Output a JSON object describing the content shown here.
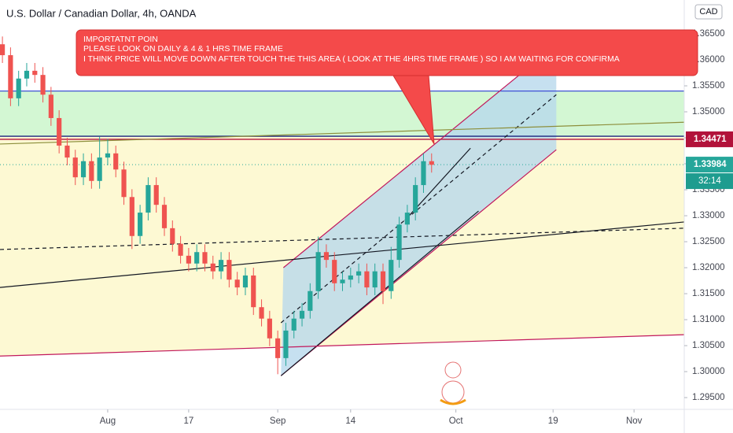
{
  "chart_data": {
    "type": "candlestick",
    "title": "U.S. Dollar / Canadian Dollar, 4h, OANDA",
    "currency": "CAD",
    "countdown": "32:14",
    "annotation": [
      "IMPORTATNT POIN",
      "PLEASE LOOK ON DAILY & 4 & 1 HRS TIME FRAME",
      "I THINK PRICE WILL MOVE DOWN AFTER TOUCH THE THIS AREA ( LOOK AT THE 4HRS TIME FRAME ) SO I AM WAITING FOR CONFIRMA"
    ],
    "x": [
      -13,
      -12,
      -11,
      -10,
      -9,
      -8,
      -7,
      -6,
      -5,
      -4,
      -3,
      -2,
      -1,
      0,
      1,
      2,
      3,
      4,
      5,
      6,
      7,
      8,
      9,
      10,
      11,
      12,
      13,
      14,
      15,
      16,
      17,
      18,
      19,
      20,
      21,
      22,
      23,
      24,
      25,
      26,
      27,
      28,
      29,
      30,
      31,
      32,
      33,
      34,
      35,
      36,
      37,
      38,
      39,
      40
    ],
    "open": [
      1.363,
      1.3609,
      1.3526,
      1.3564,
      1.3579,
      1.3571,
      1.3533,
      1.3488,
      1.3435,
      1.3412,
      1.3374,
      1.3405,
      1.3367,
      1.3412,
      1.342,
      1.3389,
      1.3336,
      1.3261,
      1.3306,
      1.3359,
      1.3321,
      1.3276,
      1.3246,
      1.3223,
      1.3208,
      1.323,
      1.3208,
      1.3193,
      1.3215,
      1.3177,
      1.3162,
      1.3185,
      1.3124,
      1.3102,
      1.3064,
      1.3026,
      1.3079,
      1.3102,
      1.3117,
      1.3155,
      1.323,
      1.3215,
      1.317,
      1.3177,
      1.3185,
      1.3193,
      1.3162,
      1.3193,
      1.3155,
      1.3215,
      1.3283,
      1.3306,
      1.3359,
      1.3405
    ],
    "high": [
      1.3645,
      1.3624,
      1.3579,
      1.3594,
      1.3594,
      1.3586,
      1.3548,
      1.3503,
      1.345,
      1.3427,
      1.342,
      1.342,
      1.3452,
      1.3448,
      1.3435,
      1.3404,
      1.3351,
      1.3321,
      1.3374,
      1.3374,
      1.3336,
      1.3291,
      1.3261,
      1.3238,
      1.3245,
      1.3245,
      1.3223,
      1.323,
      1.323,
      1.3192,
      1.32,
      1.32,
      1.3139,
      1.3117,
      1.3079,
      1.3094,
      1.3117,
      1.3132,
      1.317,
      1.326,
      1.3245,
      1.323,
      1.3192,
      1.32,
      1.3208,
      1.3208,
      1.3208,
      1.3208,
      1.324,
      1.3298,
      1.3321,
      1.3374,
      1.342,
      1.342
    ],
    "low": [
      1.3594,
      1.3511,
      1.3511,
      1.3549,
      1.3556,
      1.3518,
      1.3473,
      1.342,
      1.3397,
      1.3359,
      1.3359,
      1.3352,
      1.3352,
      1.3397,
      1.3374,
      1.3321,
      1.3236,
      1.3246,
      1.3291,
      1.3306,
      1.3261,
      1.3231,
      1.3208,
      1.3193,
      1.3193,
      1.3193,
      1.3178,
      1.3178,
      1.3162,
      1.3147,
      1.3147,
      1.3109,
      1.3087,
      1.3049,
      1.2995,
      1.3011,
      1.3064,
      1.3087,
      1.3102,
      1.314,
      1.32,
      1.3155,
      1.3155,
      1.3162,
      1.317,
      1.3147,
      1.3147,
      1.313,
      1.314,
      1.32,
      1.3268,
      1.3291,
      1.3344,
      1.3383
    ],
    "close": [
      1.3609,
      1.3526,
      1.3564,
      1.3579,
      1.3571,
      1.3533,
      1.3488,
      1.3435,
      1.3412,
      1.3374,
      1.3405,
      1.3367,
      1.3412,
      1.342,
      1.3389,
      1.3336,
      1.3261,
      1.3306,
      1.3359,
      1.3321,
      1.3276,
      1.3246,
      1.3223,
      1.3208,
      1.323,
      1.3208,
      1.3193,
      1.3215,
      1.3177,
      1.3162,
      1.3185,
      1.3124,
      1.3102,
      1.3064,
      1.3026,
      1.3079,
      1.3102,
      1.3117,
      1.3155,
      1.323,
      1.3215,
      1.317,
      1.3177,
      1.3185,
      1.3193,
      1.3162,
      1.3193,
      1.3155,
      1.3215,
      1.3283,
      1.3306,
      1.3359,
      1.3405,
      1.3398
    ],
    "up_color": "#26a69a",
    "down_color": "#ef5350",
    "xlim": [
      -13.3,
      71.2
    ],
    "xticks": [
      {
        "value": 0,
        "label": "Aug"
      },
      {
        "value": 10,
        "label": "17"
      },
      {
        "value": 21,
        "label": "Sep"
      },
      {
        "value": 30,
        "label": "14"
      },
      {
        "value": 43,
        "label": "Oct"
      },
      {
        "value": 55,
        "label": "19"
      },
      {
        "value": 65,
        "label": "Nov"
      }
    ],
    "ylim": [
      1.29273,
      1.37152
    ],
    "yticks": [
      {
        "value": 1.295,
        "label": "1.29500"
      },
      {
        "value": 1.3,
        "label": "1.30000"
      },
      {
        "value": 1.305,
        "label": "1.30500"
      },
      {
        "value": 1.31,
        "label": "1.31000"
      },
      {
        "value": 1.315,
        "label": "1.31500"
      },
      {
        "value": 1.32,
        "label": "1.32000"
      },
      {
        "value": 1.325,
        "label": "1.32500"
      },
      {
        "value": 1.33,
        "label": "1.33000"
      },
      {
        "value": 1.335,
        "label": "1.33500"
      },
      {
        "value": 1.34,
        "label": "1.34000"
      },
      {
        "value": 1.345,
        "label": "1.34500"
      },
      {
        "value": 1.35,
        "label": "1.35000"
      },
      {
        "value": 1.355,
        "label": "1.35500"
      },
      {
        "value": 1.36,
        "label": "1.36000"
      },
      {
        "value": 1.365,
        "label": "1.36500"
      }
    ],
    "zones": [
      {
        "color": "#c8f5c8",
        "points": [
          [
            -13.3,
            1.354
          ],
          [
            71.2,
            1.354
          ],
          [
            71.2,
            1.3453
          ],
          [
            -13.3,
            1.3453
          ]
        ]
      },
      {
        "color": "#fdf8c8",
        "points": [
          [
            -13.3,
            1.3453
          ],
          [
            71.2,
            1.3453
          ],
          [
            71.2,
            1.3071
          ],
          [
            -13.3,
            1.303
          ]
        ]
      },
      {
        "color": "#b8d8ec",
        "points": [
          [
            21.7,
            1.32
          ],
          [
            55.4,
            1.3629
          ],
          [
            55.4,
            1.3427
          ],
          [
            21.4,
            1.2992
          ]
        ]
      }
    ],
    "levels": [
      {
        "value": 1.354,
        "color": "#3f51d6"
      },
      {
        "value": 1.3453,
        "color": "#1a237e"
      },
      {
        "value": 1.34471,
        "color": "#b2123a"
      }
    ],
    "lines": [
      {
        "color": "#c2185b",
        "dash": false,
        "points": [
          [
            21.7,
            1.32
          ],
          [
            55.4,
            1.3629
          ]
        ]
      },
      {
        "color": "#c2185b",
        "dash": false,
        "points": [
          [
            21.4,
            1.2992
          ],
          [
            55.4,
            1.3427
          ]
        ]
      },
      {
        "color": "#131722",
        "dash": false,
        "points": [
          [
            21.4,
            1.2992
          ],
          [
            45.8,
            1.3309
          ]
        ]
      },
      {
        "color": "#131722",
        "dash": true,
        "points": [
          [
            21.4,
            1.3094
          ],
          [
            55.4,
            1.3533
          ]
        ]
      },
      {
        "color": "#131722",
        "dash": false,
        "points": [
          [
            -13.3,
            1.3162
          ],
          [
            71.2,
            1.3288
          ]
        ]
      },
      {
        "color": "#131722",
        "dash": true,
        "points": [
          [
            -13.3,
            1.3235
          ],
          [
            71.2,
            1.3276
          ]
        ]
      },
      {
        "color": "#8d8f3c",
        "dash": false,
        "points": [
          [
            -13.3,
            1.3438
          ],
          [
            71.2,
            1.348
          ]
        ]
      },
      {
        "color": "#c2185b",
        "dash": false,
        "points": [
          [
            -13.3,
            1.303
          ],
          [
            71.2,
            1.3071
          ]
        ]
      },
      {
        "color": "#131722",
        "dash": false,
        "points": [
          [
            36.7,
            1.3291
          ],
          [
            44.8,
            1.343
          ]
        ]
      }
    ],
    "price_labels": [
      {
        "value": 1.34471,
        "color": "#b2123a"
      },
      {
        "value": 1.33984,
        "color": "#26a69a"
      }
    ]
  }
}
